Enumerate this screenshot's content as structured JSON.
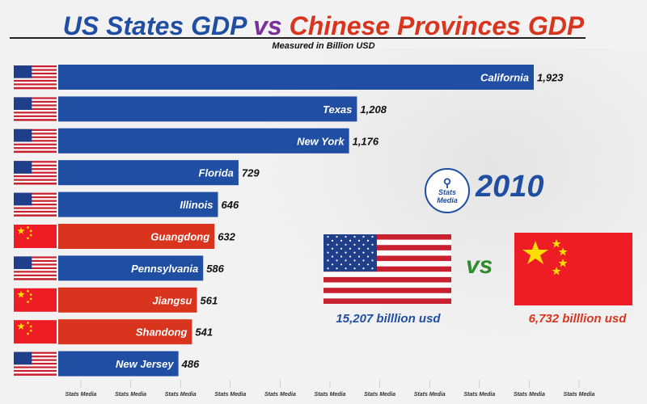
{
  "title": {
    "part1": "US States GDP",
    "part2": "vs",
    "part3": "Chinese Provinces GDP"
  },
  "subtitle": "Measured in Billion USD",
  "year": "2010",
  "logo": {
    "line1": "Stats",
    "line2": "Media"
  },
  "vs_label": "vs",
  "totals": {
    "us": "15,207  billlion usd",
    "cn": "6,732  billlion usd"
  },
  "footer_label": "Stats Media",
  "colors": {
    "us": "#1f4ea3",
    "cn": "#d8341e",
    "accent": "#7b2f9a"
  },
  "chart_data": {
    "type": "bar",
    "orientation": "horizontal",
    "title": "US States GDP vs Chinese Provinces GDP",
    "subtitle": "Measured in Billion USD",
    "categories": [
      "California",
      "Texas",
      "New York",
      "Florida",
      "Illinois",
      "Guangdong",
      "Pennsylvania",
      "Jiangsu",
      "Shandong",
      "New Jersey"
    ],
    "values": [
      1923,
      1208,
      1176,
      729,
      646,
      632,
      586,
      561,
      541,
      486
    ],
    "value_labels": [
      "1,923",
      "1,208",
      "1,176",
      "729",
      "646",
      "632",
      "586",
      "561",
      "541",
      "486"
    ],
    "country": [
      "us",
      "us",
      "us",
      "us",
      "us",
      "cn",
      "us",
      "cn",
      "cn",
      "us"
    ],
    "flag_icons": [
      "us-flag-icon",
      "us-flag-icon",
      "us-flag-icon",
      "us-flag-icon",
      "us-flag-icon",
      "china-flag-icon",
      "us-flag-icon",
      "china-flag-icon",
      "china-flag-icon",
      "us-flag-icon"
    ],
    "xlim": [
      0,
      1923
    ],
    "grid": false,
    "legend": "none"
  }
}
